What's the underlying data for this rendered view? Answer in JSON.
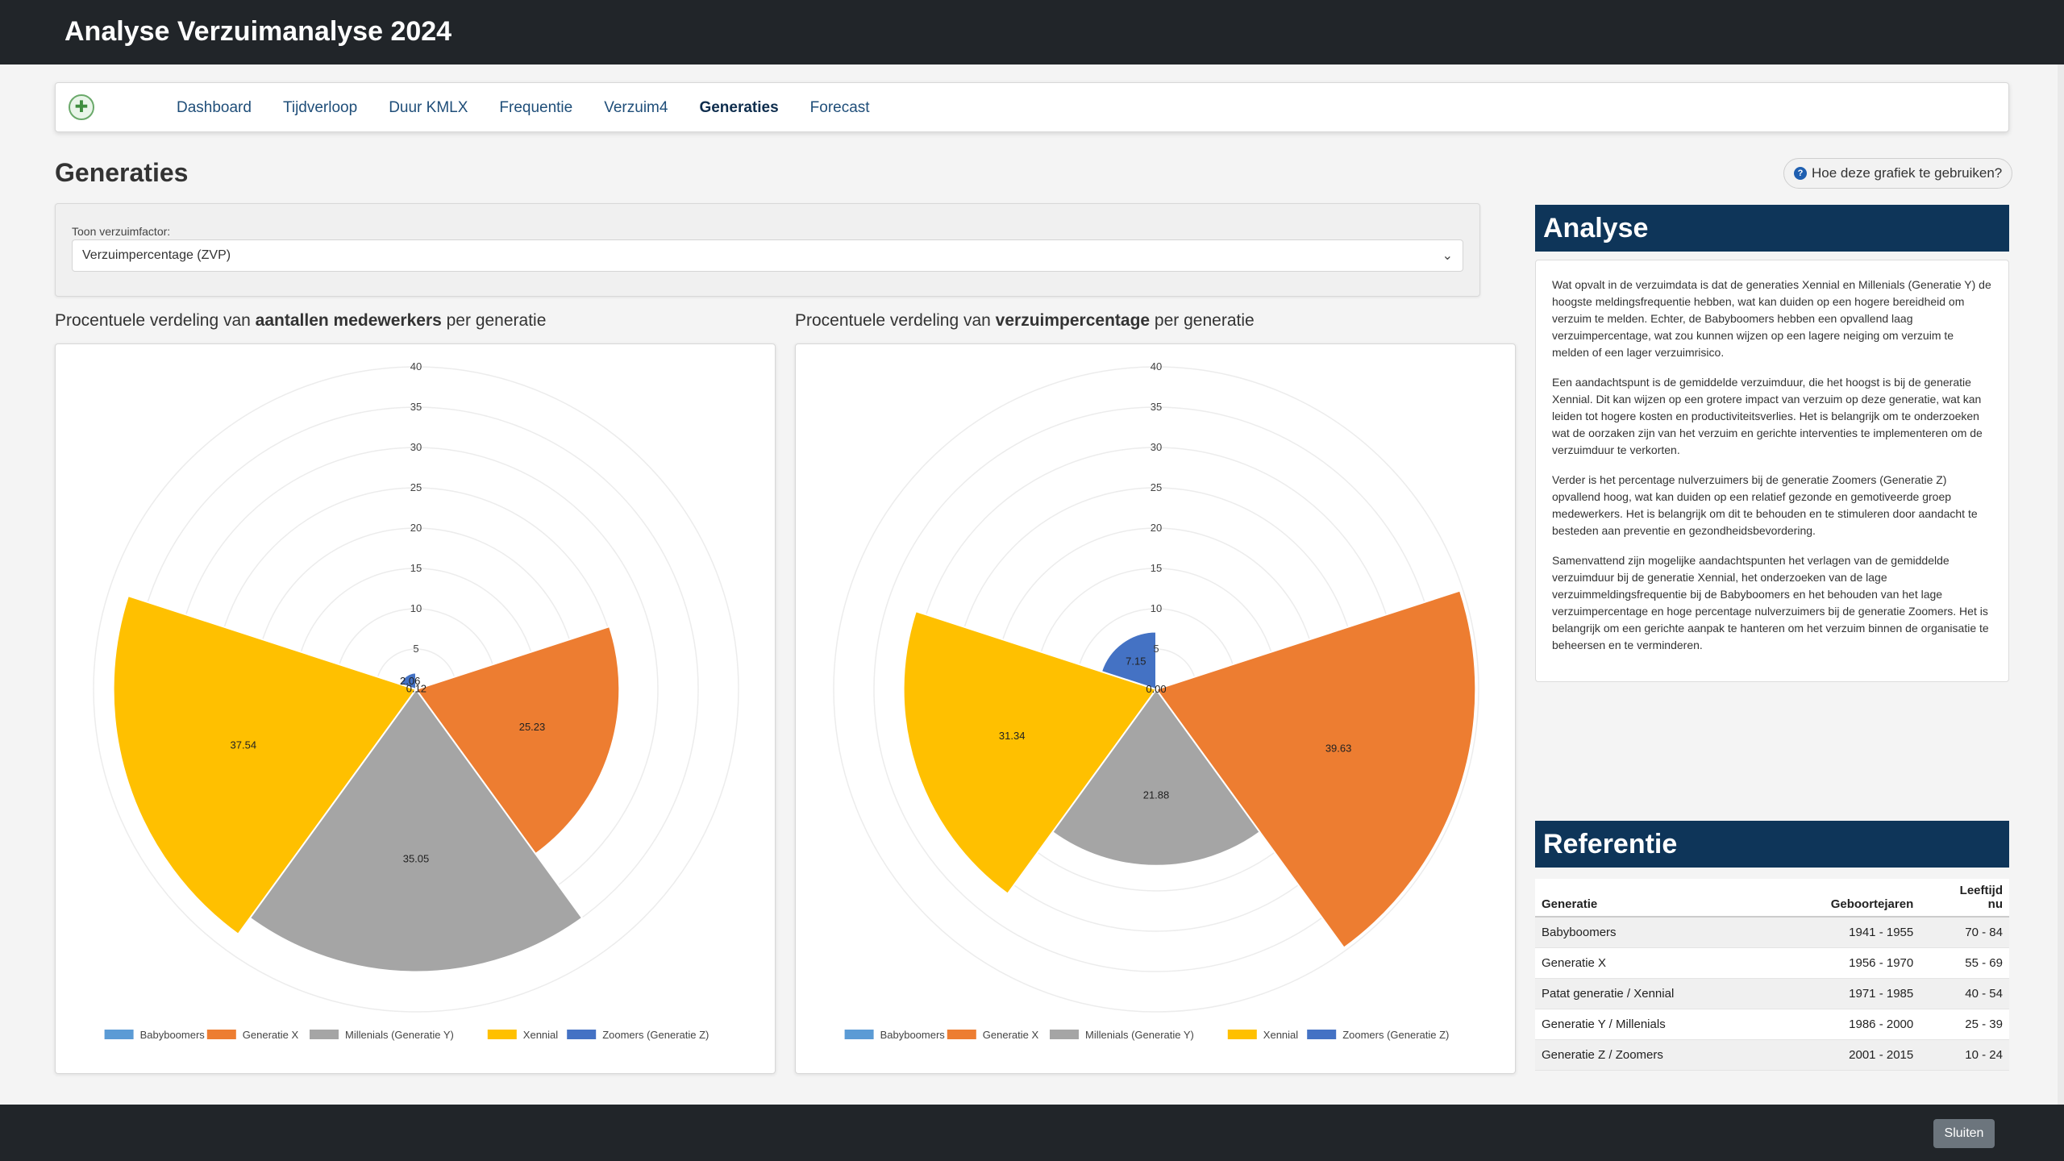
{
  "app": {
    "title": "Analyse Verzuimanalyse 2024"
  },
  "nav": {
    "logo_glyph": "✚",
    "items": [
      {
        "label": "Dashboard"
      },
      {
        "label": "Tijdverloop"
      },
      {
        "label": "Duur KMLX"
      },
      {
        "label": "Frequentie"
      },
      {
        "label": "Verzuim4"
      },
      {
        "label": "Generaties",
        "active": true
      },
      {
        "label": "Forecast"
      }
    ]
  },
  "page": {
    "title": "Generaties",
    "help_icon_glyph": "?",
    "help_label": "Hoe deze grafiek te gebruiken?"
  },
  "filter": {
    "label": "Toon verzuimfactor:",
    "selected": "Verzuimpercentage (ZVP)",
    "chevron_glyph": "⌄"
  },
  "charts": {
    "left_title": {
      "pre": "Procentuele verdeling van ",
      "bold": "aantallen medewerkers",
      "post": " per generatie"
    },
    "right_title": {
      "pre": "Procentuele verdeling van ",
      "bold": "verzuimpercentage",
      "post": " per generatie"
    }
  },
  "chart_data": [
    {
      "type": "polar-area",
      "title": "Procentuele verdeling van aantallen medewerkers per generatie",
      "rlim": [
        0,
        40
      ],
      "ticks": [
        5,
        10,
        15,
        20,
        25,
        30,
        35,
        40
      ],
      "series": [
        {
          "name": "Babyboomers",
          "value": 0.12,
          "color": "#5b9bd5"
        },
        {
          "name": "Generatie X",
          "value": 25.23,
          "color": "#ed7d31"
        },
        {
          "name": "Millenials (Generatie Y)",
          "value": 35.05,
          "color": "#a5a5a5"
        },
        {
          "name": "Xennial",
          "value": 37.54,
          "color": "#ffc000"
        },
        {
          "name": "Zoomers (Generatie Z)",
          "value": 2.06,
          "color": "#4472c4"
        }
      ],
      "visible_labels": [
        "0.12",
        "25.23",
        "35.05",
        "37.54",
        "2.06"
      ],
      "legend": "bottom"
    },
    {
      "type": "polar-area",
      "title": "Procentuele verdeling van verzuimpercentage per generatie",
      "rlim": [
        0,
        40
      ],
      "ticks": [
        5,
        10,
        15,
        20,
        25,
        30,
        35,
        40
      ],
      "series": [
        {
          "name": "Babyboomers",
          "value": 0.0,
          "color": "#5b9bd5"
        },
        {
          "name": "Generatie X",
          "value": 39.63,
          "color": "#ed7d31"
        },
        {
          "name": "Millenials (Generatie Y)",
          "value": 21.88,
          "color": "#a5a5a5"
        },
        {
          "name": "Xennial",
          "value": 31.34,
          "color": "#ffc000"
        },
        {
          "name": "Zoomers (Generatie Z)",
          "value": 7.15,
          "color": "#4472c4"
        }
      ],
      "visible_labels": [
        "0.00",
        "39.63",
        "21.88",
        "31.34",
        "7.15"
      ],
      "legend": "bottom"
    }
  ],
  "analyse": {
    "title": "Analyse",
    "paragraphs": [
      "Wat opvalt in de verzuimdata is dat de generaties Xennial en Millenials (Generatie Y) de hoogste meldingsfrequentie hebben, wat kan duiden op een hogere bereidheid om verzuim te melden. Echter, de Babyboomers hebben een opvallend laag verzuimpercentage, wat zou kunnen wijzen op een lagere neiging om verzuim te melden of een lager verzuimrisico.",
      "Een aandachtspunt is de gemiddelde verzuimduur, die het hoogst is bij de generatie Xennial. Dit kan wijzen op een grotere impact van verzuim op deze generatie, wat kan leiden tot hogere kosten en productiviteitsverlies. Het is belangrijk om te onderzoeken wat de oorzaken zijn van het verzuim en gerichte interventies te implementeren om de verzuimduur te verkorten.",
      "Verder is het percentage nulverzuimers bij de generatie Zoomers (Generatie Z) opvallend hoog, wat kan duiden op een relatief gezonde en gemotiveerde groep medewerkers. Het is belangrijk om dit te behouden en te stimuleren door aandacht te besteden aan preventie en gezondheidsbevordering.",
      "Samenvattend zijn mogelijke aandachtspunten het verlagen van de gemiddelde verzuimduur bij de generatie Xennial, het onderzoeken van de lage verzuimmeldingsfrequentie bij de Babyboomers en het behouden van het lage verzuimpercentage en hoge percentage nulverzuimers bij de generatie Zoomers. Het is belangrijk om een gerichte aanpak te hanteren om het verzuim binnen de organisatie te beheersen en te verminderen."
    ]
  },
  "referentie": {
    "title": "Referentie",
    "headers": {
      "generatie": "Generatie",
      "geboortejaren": "Geboortejaren",
      "leeftijd_1": "Leeftijd",
      "leeftijd_2": "nu"
    },
    "rows": [
      {
        "generatie": "Babyboomers",
        "geboortejaren": "1941 - 1955",
        "leeftijd": "70 - 84"
      },
      {
        "generatie": "Generatie X",
        "geboortejaren": "1956 - 1970",
        "leeftijd": "55 - 69"
      },
      {
        "generatie": "Patat generatie / Xennial",
        "geboortejaren": "1971 - 1985",
        "leeftijd": "40 - 54"
      },
      {
        "generatie": "Generatie Y / Millenials",
        "geboortejaren": "1986 - 2000",
        "leeftijd": "25 - 39"
      },
      {
        "generatie": "Generatie Z / Zoomers",
        "geboortejaren": "2001 - 2015",
        "leeftijd": "10 - 24"
      }
    ]
  },
  "footer": {
    "close_label": "Sluiten"
  }
}
